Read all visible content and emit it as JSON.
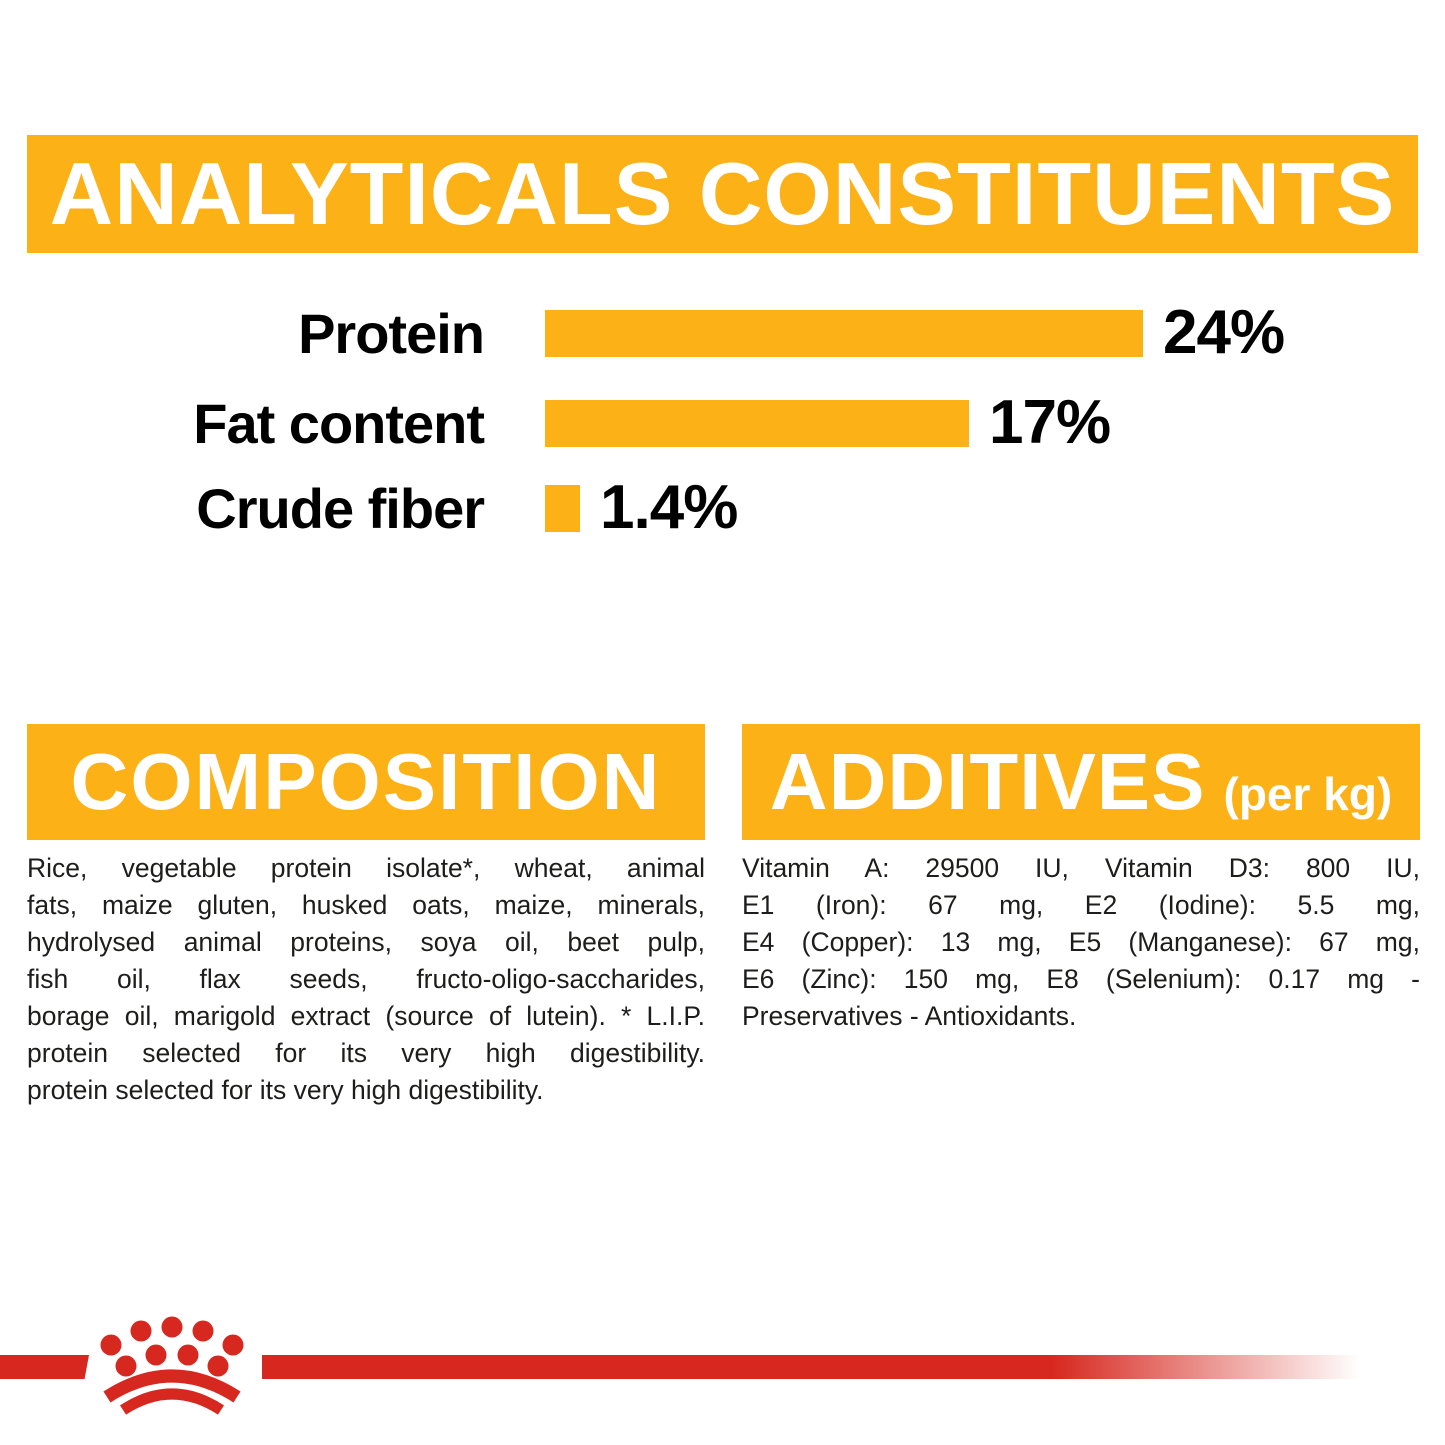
{
  "page": {
    "background": "#FFFFFF"
  },
  "colors": {
    "accent_yellow": "#FCB116",
    "brand_red": "#D7281F",
    "text_black": "#1D1D1B",
    "banner_text": "#FFFFFF"
  },
  "analyticals": {
    "title": "ANALYTICALS CONSTITUENTS"
  },
  "chart_data": {
    "type": "bar",
    "orientation": "horizontal",
    "title": "ANALYTICALS CONSTITUENTS",
    "categories": [
      "Protein",
      "Fat content",
      "Crude fiber"
    ],
    "values": [
      24,
      17,
      1.4
    ],
    "value_labels": [
      "24%",
      "17%",
      "1.4%"
    ],
    "xlabel": "",
    "ylabel": "",
    "xlim": [
      0,
      24
    ],
    "grid": false,
    "legend": false,
    "bar_color": "#FCB116",
    "label_color": "#000000"
  },
  "composition": {
    "title": "COMPOSITION",
    "lines": [
      "Rice, vegetable protein isolate*, wheat, animal",
      "fats, maize gluten, husked oats, maize, minerals,",
      "hydrolysed animal proteins, soya oil, beet pulp,",
      "fish oil, flax seeds, fructo-oligo-saccharides,",
      "borage oil, marigold extract (source of lutein). * L.I.P.",
      "protein selected for its very high digestibility.",
      "protein selected for its very high digestibility."
    ]
  },
  "additives": {
    "title": "ADDITIVES",
    "unit_suffix": "(per kg)",
    "lines": [
      "Vitamin A: 29500 IU, Vitamin D3: 800 IU,",
      "E1 (Iron): 67 mg, E2 (Iodine): 5.5 mg,",
      "E4 (Copper): 13 mg, E5 (Manganese): 67 mg,",
      "E6 (Zinc): 150 mg, E8 (Selenium): 0.17 mg -",
      "Preservatives - Antioxidants."
    ]
  },
  "footer": {
    "logo_name": "royal-canin-crown-logo",
    "stripe_color": "#D7281F"
  }
}
